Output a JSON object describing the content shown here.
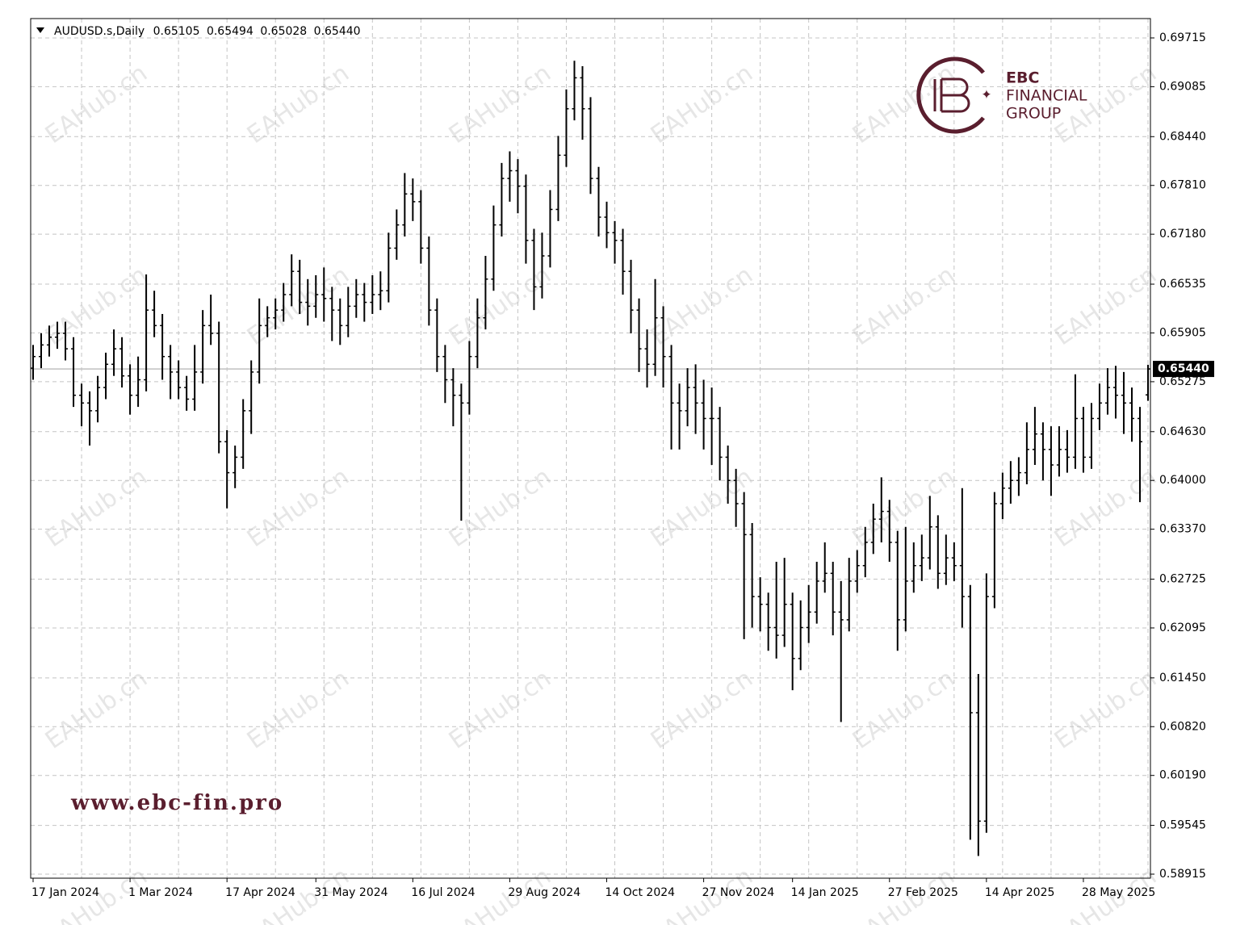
{
  "chart_data": {
    "type": "ohlc",
    "header": {
      "symbol": "AUDUSD.s,Daily",
      "ohlc": [
        "0.65105",
        "0.65494",
        "0.65028",
        "0.65440"
      ]
    },
    "last_price": {
      "value": 0.6544,
      "label": "0.65440"
    },
    "watermark": "EAHub.cn",
    "logo": {
      "line1": "EBC",
      "line2": "FINANCIAL",
      "line3": "GROUP"
    },
    "website": "www.ebc-fin.pro",
    "color": "#000000",
    "grid": true,
    "ylim": [
      0.58863,
      0.69965
    ],
    "yticks": [
      0.69715,
      0.69085,
      {
        "value": 0.6844,
        "label": "0.68440"
      },
      {
        "value": 0.6781,
        "label": "0.67810"
      },
      {
        "value": 0.6718,
        "label": "0.67180"
      },
      0.66535,
      0.65905,
      0.65275,
      {
        "value": 0.6463,
        "label": "0.64630"
      },
      {
        "value": 0.64,
        "label": "0.64000"
      },
      {
        "value": 0.6337,
        "label": "0.63370"
      },
      0.62725,
      0.62095,
      {
        "value": 0.6145,
        "label": "0.61450"
      },
      {
        "value": 0.6082,
        "label": "0.60820"
      },
      {
        "value": 0.6019,
        "label": "0.60190"
      },
      0.59545,
      0.58915
    ],
    "categories": [
      "17 Jan 2024",
      null,
      null,
      null,
      null,
      null,
      null,
      null,
      null,
      null,
      null,
      null,
      "1 Mar 2024",
      null,
      null,
      null,
      null,
      null,
      null,
      null,
      null,
      null,
      null,
      null,
      "17 Apr 2024",
      null,
      null,
      null,
      null,
      null,
      null,
      null,
      null,
      null,
      null,
      "31 May 2024",
      null,
      null,
      null,
      null,
      null,
      null,
      null,
      null,
      null,
      null,
      null,
      "16 Jul 2024",
      null,
      null,
      null,
      null,
      null,
      null,
      null,
      null,
      null,
      null,
      null,
      "29 Aug 2024",
      null,
      null,
      null,
      null,
      null,
      null,
      null,
      null,
      null,
      null,
      null,
      "14 Oct 2024",
      null,
      null,
      null,
      null,
      null,
      null,
      null,
      null,
      null,
      null,
      null,
      "27 Nov 2024",
      null,
      null,
      null,
      null,
      null,
      null,
      null,
      null,
      null,
      null,
      "14 Jan 2025",
      null,
      null,
      null,
      null,
      null,
      null,
      null,
      null,
      null,
      null,
      null,
      "27 Feb 2025",
      null,
      null,
      null,
      null,
      null,
      null,
      null,
      null,
      null,
      null,
      null,
      "14 Apr 2025",
      null,
      null,
      null,
      null,
      null,
      null,
      null,
      null,
      null,
      null,
      null,
      "28 May 2025",
      null,
      null,
      null,
      null,
      null,
      null,
      null,
      null
    ],
    "ohlc": [
      [
        0.6545,
        0.6575,
        0.653,
        0.656
      ],
      [
        0.656,
        0.659,
        0.6545,
        0.6575
      ],
      [
        0.6575,
        0.66,
        0.656,
        0.6585
      ],
      [
        0.6585,
        0.6605,
        0.657,
        0.659
      ],
      [
        0.659,
        0.6605,
        0.6555,
        0.657
      ],
      [
        0.657,
        0.6585,
        0.6495,
        0.651
      ],
      [
        0.651,
        0.6525,
        0.647,
        0.65
      ],
      [
        0.65,
        0.6515,
        0.6445,
        0.649
      ],
      [
        0.649,
        0.6535,
        0.6475,
        0.652
      ],
      [
        0.652,
        0.6565,
        0.6505,
        0.655
      ],
      [
        0.655,
        0.6595,
        0.6535,
        0.657
      ],
      [
        0.657,
        0.6585,
        0.652,
        0.6535
      ],
      [
        0.6535,
        0.655,
        0.6485,
        0.651
      ],
      [
        0.651,
        0.656,
        0.6495,
        0.653
      ],
      [
        0.653,
        0.6666,
        0.6515,
        0.662
      ],
      [
        0.662,
        0.6645,
        0.6585,
        0.66
      ],
      [
        0.66,
        0.6615,
        0.653,
        0.656
      ],
      [
        0.656,
        0.6575,
        0.6505,
        0.654
      ],
      [
        0.654,
        0.6555,
        0.6505,
        0.652
      ],
      [
        0.652,
        0.6535,
        0.649,
        0.6505
      ],
      [
        0.6505,
        0.6575,
        0.649,
        0.654
      ],
      [
        0.654,
        0.662,
        0.6525,
        0.66
      ],
      [
        0.66,
        0.664,
        0.6575,
        0.659
      ],
      [
        0.659,
        0.6605,
        0.6435,
        0.645
      ],
      [
        0.645,
        0.6465,
        0.6364,
        0.641
      ],
      [
        0.641,
        0.6445,
        0.639,
        0.643
      ],
      [
        0.643,
        0.6505,
        0.6415,
        0.649
      ],
      [
        0.649,
        0.6555,
        0.646,
        0.654
      ],
      [
        0.654,
        0.6635,
        0.6525,
        0.66
      ],
      [
        0.66,
        0.6625,
        0.6585,
        0.661
      ],
      [
        0.661,
        0.6635,
        0.6595,
        0.662
      ],
      [
        0.662,
        0.6655,
        0.6605,
        0.664
      ],
      [
        0.664,
        0.6692,
        0.6625,
        0.667
      ],
      [
        0.667,
        0.6685,
        0.6615,
        0.663
      ],
      [
        0.663,
        0.666,
        0.66,
        0.6625
      ],
      [
        0.6625,
        0.6665,
        0.661,
        0.664
      ],
      [
        0.664,
        0.6675,
        0.6605,
        0.6635
      ],
      [
        0.6635,
        0.665,
        0.658,
        0.662
      ],
      [
        0.662,
        0.6635,
        0.6575,
        0.66
      ],
      [
        0.66,
        0.665,
        0.6585,
        0.6625
      ],
      [
        0.6625,
        0.666,
        0.661,
        0.664
      ],
      [
        0.664,
        0.6655,
        0.6605,
        0.663
      ],
      [
        0.663,
        0.6665,
        0.6615,
        0.664
      ],
      [
        0.664,
        0.667,
        0.662,
        0.6645
      ],
      [
        0.6645,
        0.672,
        0.663,
        0.67
      ],
      [
        0.67,
        0.675,
        0.6685,
        0.673
      ],
      [
        0.673,
        0.6797,
        0.6715,
        0.677
      ],
      [
        0.677,
        0.679,
        0.6735,
        0.676
      ],
      [
        0.676,
        0.6775,
        0.668,
        0.67
      ],
      [
        0.67,
        0.6715,
        0.66,
        0.662
      ],
      [
        0.662,
        0.6635,
        0.654,
        0.656
      ],
      [
        0.656,
        0.6575,
        0.65,
        0.653
      ],
      [
        0.653,
        0.6545,
        0.647,
        0.651
      ],
      [
        0.651,
        0.6525,
        0.6348,
        0.65
      ],
      [
        0.65,
        0.658,
        0.6485,
        0.656
      ],
      [
        0.656,
        0.6635,
        0.6545,
        0.661
      ],
      [
        0.661,
        0.669,
        0.6595,
        0.666
      ],
      [
        0.666,
        0.6755,
        0.6645,
        0.673
      ],
      [
        0.673,
        0.681,
        0.6715,
        0.679
      ],
      [
        0.679,
        0.6825,
        0.676,
        0.68
      ],
      [
        0.68,
        0.6815,
        0.6745,
        0.678
      ],
      [
        0.678,
        0.6795,
        0.668,
        0.671
      ],
      [
        0.671,
        0.6725,
        0.662,
        0.665
      ],
      [
        0.665,
        0.672,
        0.6635,
        0.669
      ],
      [
        0.669,
        0.6775,
        0.6675,
        0.675
      ],
      [
        0.675,
        0.6845,
        0.6735,
        0.682
      ],
      [
        0.682,
        0.6905,
        0.6805,
        0.688
      ],
      [
        0.688,
        0.6942,
        0.6865,
        0.692
      ],
      [
        0.692,
        0.6935,
        0.684,
        0.688
      ],
      [
        0.688,
        0.6895,
        0.677,
        0.679
      ],
      [
        0.679,
        0.6805,
        0.6715,
        0.674
      ],
      [
        0.674,
        0.676,
        0.67,
        0.672
      ],
      [
        0.672,
        0.6735,
        0.668,
        0.671
      ],
      [
        0.671,
        0.6725,
        0.664,
        0.667
      ],
      [
        0.667,
        0.6685,
        0.659,
        0.662
      ],
      [
        0.662,
        0.6635,
        0.654,
        0.657
      ],
      [
        0.657,
        0.6595,
        0.652,
        0.655
      ],
      [
        0.655,
        0.666,
        0.6535,
        0.661
      ],
      [
        0.661,
        0.6625,
        0.652,
        0.656
      ],
      [
        0.656,
        0.6575,
        0.644,
        0.65
      ],
      [
        0.65,
        0.6525,
        0.644,
        0.649
      ],
      [
        0.649,
        0.6545,
        0.647,
        0.652
      ],
      [
        0.652,
        0.655,
        0.646,
        0.65
      ],
      [
        0.65,
        0.653,
        0.644,
        0.648
      ],
      [
        0.648,
        0.652,
        0.642,
        0.648
      ],
      [
        0.648,
        0.6495,
        0.64,
        0.643
      ],
      [
        0.643,
        0.6445,
        0.637,
        0.64
      ],
      [
        0.64,
        0.6415,
        0.634,
        0.637
      ],
      [
        0.637,
        0.6385,
        0.6195,
        0.633
      ],
      [
        0.633,
        0.6345,
        0.621,
        0.625
      ],
      [
        0.625,
        0.6275,
        0.6205,
        0.624
      ],
      [
        0.624,
        0.6255,
        0.618,
        0.621
      ],
      [
        0.621,
        0.6295,
        0.617,
        0.62
      ],
      [
        0.62,
        0.63,
        0.6185,
        0.624
      ],
      [
        0.624,
        0.6255,
        0.6129,
        0.617
      ],
      [
        0.617,
        0.6245,
        0.6155,
        0.621
      ],
      [
        0.621,
        0.6265,
        0.619,
        0.623
      ],
      [
        0.623,
        0.6295,
        0.6215,
        0.627
      ],
      [
        0.627,
        0.632,
        0.6255,
        0.628
      ],
      [
        0.628,
        0.6295,
        0.62,
        0.623
      ],
      [
        0.623,
        0.627,
        0.6088,
        0.622
      ],
      [
        0.622,
        0.63,
        0.6205,
        0.627
      ],
      [
        0.627,
        0.631,
        0.6255,
        0.629
      ],
      [
        0.629,
        0.634,
        0.6275,
        0.632
      ],
      [
        0.632,
        0.637,
        0.6305,
        0.635
      ],
      [
        0.635,
        0.6404,
        0.632,
        0.636
      ],
      [
        0.636,
        0.6375,
        0.6295,
        0.632
      ],
      [
        0.632,
        0.6335,
        0.618,
        0.622
      ],
      [
        0.622,
        0.634,
        0.6205,
        0.627
      ],
      [
        0.627,
        0.632,
        0.6255,
        0.629
      ],
      [
        0.629,
        0.633,
        0.627,
        0.63
      ],
      [
        0.63,
        0.638,
        0.6285,
        0.634
      ],
      [
        0.634,
        0.6355,
        0.626,
        0.628
      ],
      [
        0.628,
        0.633,
        0.6265,
        0.63
      ],
      [
        0.63,
        0.632,
        0.627,
        0.629
      ],
      [
        0.629,
        0.639,
        0.621,
        0.625
      ],
      [
        0.625,
        0.6265,
        0.5936,
        0.61
      ],
      [
        0.61,
        0.615,
        0.5915,
        0.596
      ],
      [
        0.596,
        0.628,
        0.5945,
        0.625
      ],
      [
        0.625,
        0.6385,
        0.6235,
        0.637
      ],
      [
        0.637,
        0.641,
        0.635,
        0.639
      ],
      [
        0.639,
        0.6425,
        0.637,
        0.64
      ],
      [
        0.64,
        0.643,
        0.638,
        0.641
      ],
      [
        0.641,
        0.6475,
        0.6395,
        0.644
      ],
      [
        0.644,
        0.6495,
        0.642,
        0.646
      ],
      [
        0.646,
        0.6475,
        0.64,
        0.644
      ],
      [
        0.644,
        0.647,
        0.638,
        0.642
      ],
      [
        0.642,
        0.647,
        0.6405,
        0.644
      ],
      [
        0.644,
        0.6465,
        0.641,
        0.643
      ],
      [
        0.643,
        0.6537,
        0.6415,
        0.648
      ],
      [
        0.648,
        0.6495,
        0.641,
        0.643
      ],
      [
        0.643,
        0.65,
        0.6415,
        0.648
      ],
      [
        0.648,
        0.6525,
        0.6465,
        0.65
      ],
      [
        0.65,
        0.6545,
        0.6485,
        0.652
      ],
      [
        0.652,
        0.6548,
        0.648,
        0.651
      ],
      [
        0.651,
        0.654,
        0.646,
        0.65
      ],
      [
        0.65,
        0.652,
        0.645,
        0.648
      ],
      [
        0.648,
        0.6495,
        0.6372,
        0.645
      ],
      [
        0.65105,
        0.65494,
        0.65028,
        0.6544
      ]
    ]
  }
}
